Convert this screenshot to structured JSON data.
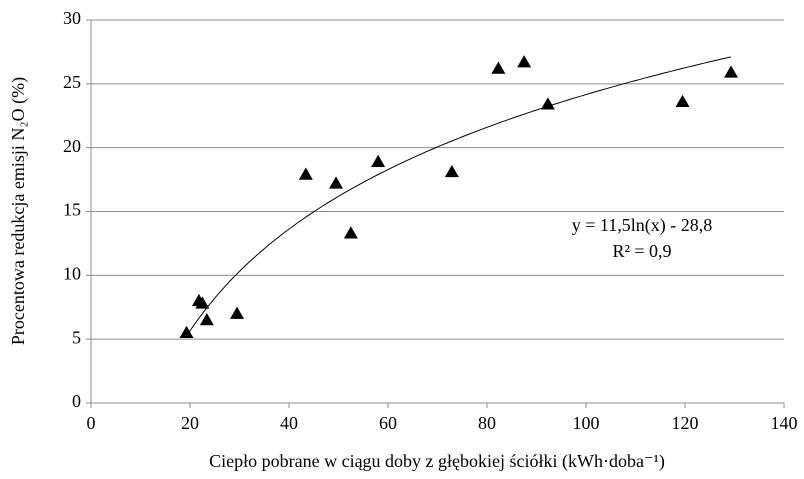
{
  "chart_data": {
    "type": "scatter",
    "x_label": "Ciepło pobrane w ciągu doby z głębokiej ściółki (kWh·doba⁻¹)",
    "y_label": "Procentowa redukcja emisji N₂O (%)",
    "series": [
      {
        "name": null,
        "color": "#000000",
        "marker": "triangle",
        "x": [
          19.3,
          21.8,
          22.5,
          23.4,
          29.5,
          43.4,
          49.5,
          52.5,
          58,
          72.9,
          82.3,
          87.5,
          92.3,
          119.5,
          129.3
        ],
        "values": [
          5.5,
          8.0,
          7.8,
          6.5,
          7.0,
          17.9,
          17.2,
          13.3,
          18.9,
          18.1,
          26.2,
          26.7,
          23.4,
          23.6,
          25.9
        ]
      }
    ],
    "trendline": {
      "equation": "y = 11,5ln(x) - 28,8",
      "r_squared": "R² = 0,9"
    },
    "xlim": [
      0,
      140
    ],
    "xticks": [
      0,
      20,
      40,
      60,
      80,
      100,
      120,
      140
    ],
    "ylim": [
      0,
      30
    ],
    "yticks": [
      0,
      5,
      10,
      15,
      20,
      25,
      30
    ],
    "grid": true
  }
}
